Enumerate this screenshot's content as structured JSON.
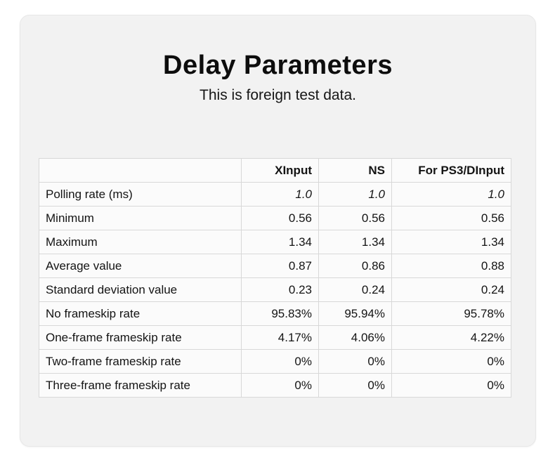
{
  "page": {
    "background": "#ffffff",
    "card_background": "#f2f2f2",
    "table_cell_background": "#fbfbfb",
    "table_border_color": "#d8d8d8",
    "text_color": "#111111"
  },
  "header": {
    "title": "Delay Parameters",
    "subtitle": "This is foreign test data."
  },
  "table": {
    "columns": [
      "",
      "XInput",
      "NS",
      "For PS3/DInput"
    ],
    "rows": [
      {
        "label": "Polling rate (ms)",
        "values": [
          "1.0",
          "1.0",
          "1.0"
        ],
        "italic": true
      },
      {
        "label": "Minimum",
        "values": [
          "0.56",
          "0.56",
          "0.56"
        ]
      },
      {
        "label": "Maximum",
        "values": [
          "1.34",
          "1.34",
          "1.34"
        ]
      },
      {
        "label": "Average value",
        "values": [
          "0.87",
          "0.86",
          "0.88"
        ]
      },
      {
        "label": "Standard deviation value",
        "values": [
          "0.23",
          "0.24",
          "0.24"
        ]
      },
      {
        "label": "No frameskip rate",
        "values": [
          "95.83%",
          "95.94%",
          "95.78%"
        ]
      },
      {
        "label": "One-frame frameskip rate",
        "values": [
          "4.17%",
          "4.06%",
          "4.22%"
        ]
      },
      {
        "label": "Two-frame frameskip rate",
        "values": [
          "0%",
          "0%",
          "0%"
        ]
      },
      {
        "label": "Three-frame frameskip rate",
        "values": [
          "0%",
          "0%",
          "0%"
        ]
      }
    ]
  }
}
